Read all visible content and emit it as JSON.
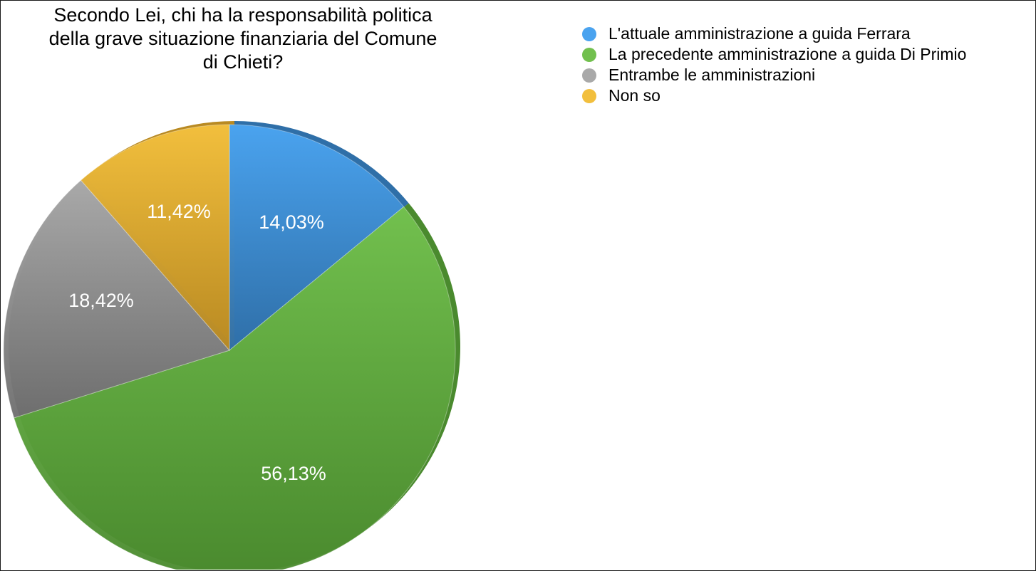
{
  "chart_data": {
    "type": "pie",
    "title": "Secondo Lei, chi ha la responsabilità politica della grave situazione finanziaria del Comune di Chieti?",
    "title_lines": [
      "Secondo Lei, chi ha la responsabilità politica",
      "della grave situazione finanziaria del Comune",
      "di Chieti?"
    ],
    "legend_position": "top-right",
    "slices": [
      {
        "label": "L'attuale amministrazione a guida Ferrara",
        "value": 14.03,
        "value_label": "14,03%",
        "color": "#4aa3ef",
        "edge_color": "#2f6fa8"
      },
      {
        "label": "La precedente amministrazione a guida Di Primio",
        "value": 56.13,
        "value_label": "56,13%",
        "color": "#72c04e",
        "edge_color": "#4a8a2e"
      },
      {
        "label": "Entrambe le amministrazioni",
        "value": 18.42,
        "value_label": "18,42%",
        "color": "#a9a9a9",
        "edge_color": "#6e6e6e"
      },
      {
        "label": "Non so",
        "value": 11.42,
        "value_label": "11,42%",
        "color": "#f2bf3d",
        "edge_color": "#b98a22"
      }
    ]
  }
}
